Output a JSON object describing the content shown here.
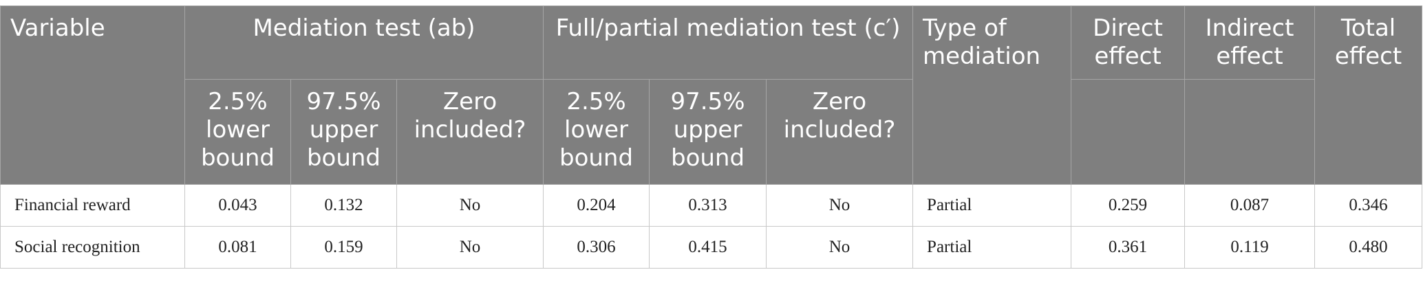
{
  "header": {
    "top": [
      "Variable",
      "Mediation test (ab)",
      "Full/partial mediation test (c′)",
      "Type of mediation",
      "Direct effect",
      "Indirect effect",
      "Total effect"
    ],
    "sub": [
      "2.5% lower bound",
      "97.5% upper bound",
      "Zero included?",
      "2.5% lower bound",
      "97.5% upper bound",
      "Zero included?"
    ]
  },
  "rows": [
    [
      "Financial reward",
      "0.043",
      "0.132",
      "No",
      "0.204",
      "0.313",
      "No",
      "Partial",
      "0.259",
      "0.087",
      "0.346"
    ],
    [
      "Social recognition",
      "0.081",
      "0.159",
      "No",
      "0.306",
      "0.415",
      "No",
      "Partial",
      "0.361",
      "0.119",
      "0.480"
    ]
  ]
}
